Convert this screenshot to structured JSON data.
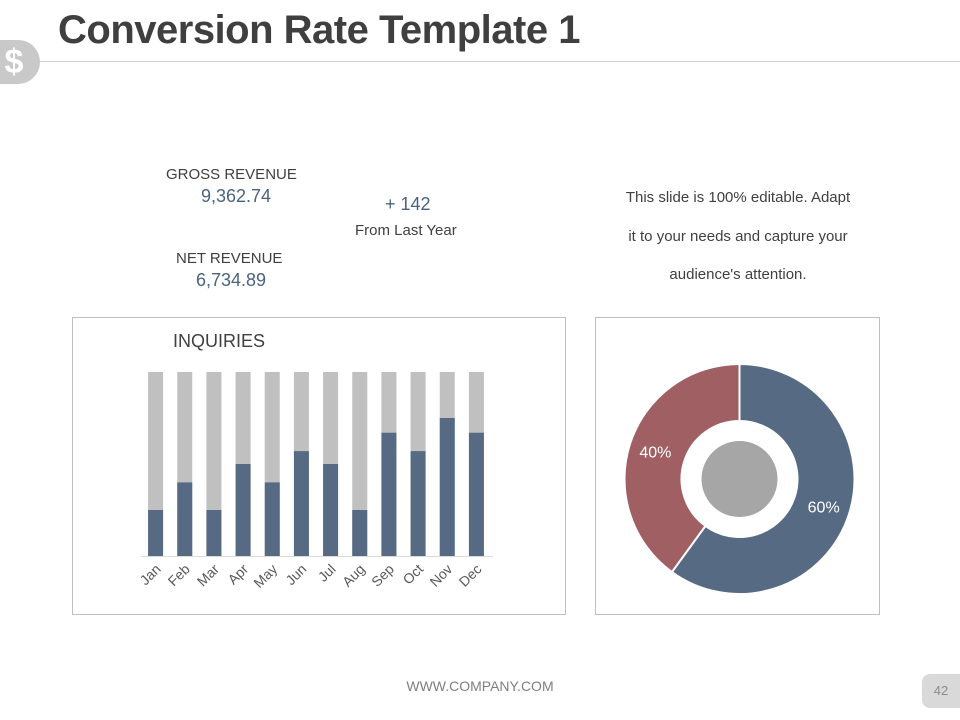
{
  "slide": {
    "title": "Conversion Rate Template 1",
    "logo_icon": "dollar-icon",
    "logo_glyph": "$",
    "footer": "WWW.COMPANY.COM",
    "page_number": "42"
  },
  "kpis": {
    "gross_label": "GROSS REVENUE",
    "gross_value": "9,362.74",
    "net_label": "NET REVENUE",
    "net_value": "6,734.89",
    "delta_value": "+ 142",
    "delta_label": "From Last Year"
  },
  "description": {
    "lines": [
      "This slide is 100% editable. Adapt",
      "it to your needs and capture your",
      "audience's attention."
    ]
  },
  "colors": {
    "bar_primary": "#566b83",
    "bar_background": "#c0c0c0",
    "pie_blue": "#566b83",
    "pie_red": "#a05f63",
    "pie_center": "#a6a6a6",
    "text_accent": "#4a6480"
  },
  "chart_data": [
    {
      "type": "bar",
      "title": "INQUIRIES",
      "stacked_to_total": true,
      "categories": [
        "Jan",
        "Feb",
        "Mar",
        "Apr",
        "May",
        "Jun",
        "Jul",
        "Aug",
        "Sep",
        "Oct",
        "Nov",
        "Dec"
      ],
      "series": [
        {
          "values": [
            25,
            40,
            25,
            50,
            40,
            57,
            50,
            25,
            67,
            57,
            75,
            67
          ]
        }
      ],
      "ylim": [
        0,
        100
      ],
      "grid": false,
      "legend": "none"
    },
    {
      "type": "pie",
      "donut": true,
      "slices": [
        {
          "label": "60%",
          "value": 60
        },
        {
          "label": "40%",
          "value": 40
        }
      ]
    }
  ]
}
